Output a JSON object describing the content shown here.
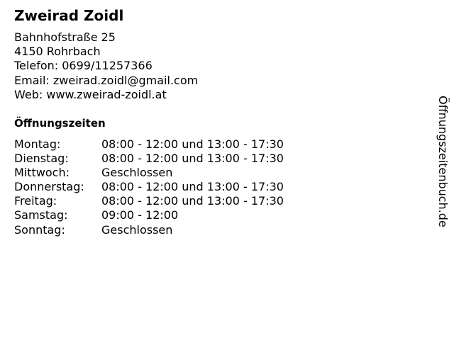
{
  "business": {
    "name": "Zweirad Zoidl",
    "street": "Bahnhofstraße 25",
    "city": "4150 Rohrbach",
    "phone": "Telefon: 0699/11257366",
    "email": "Email: zweirad.zoidl@gmail.com",
    "web": "Web: www.zweirad-zoidl.at"
  },
  "hours": {
    "heading": "Öffnungszeiten",
    "rows": [
      {
        "day": "Montag:",
        "time": "08:00 - 12:00 und 13:00 - 17:30"
      },
      {
        "day": "Dienstag:",
        "time": "08:00 - 12:00 und 13:00 - 17:30"
      },
      {
        "day": "Mittwoch:",
        "time": "Geschlossen"
      },
      {
        "day": "Donnerstag:",
        "time": "08:00 - 12:00 und 13:00 - 17:30"
      },
      {
        "day": "Freitag:",
        "time": "08:00 - 12:00 und 13:00 - 17:30"
      },
      {
        "day": "Samstag:",
        "time": "09:00 - 12:00"
      },
      {
        "day": "Sonntag:",
        "time": "Geschlossen"
      }
    ]
  },
  "watermark": "Öffnungszeitenbuch.de"
}
